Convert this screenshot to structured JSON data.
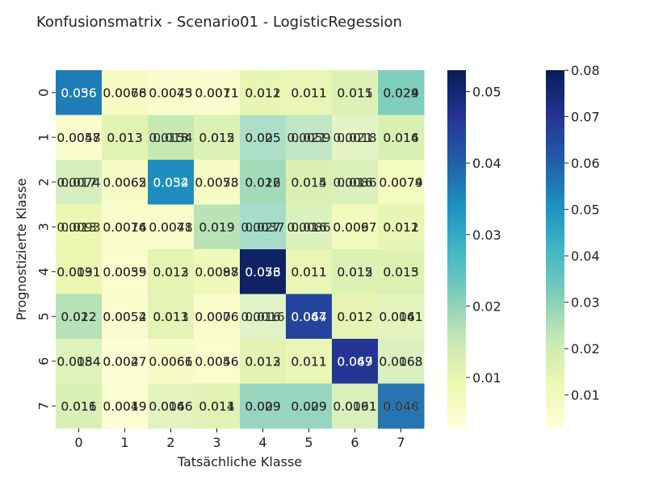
{
  "chart_data": {
    "type": "heatmap",
    "title": "Konfusionsmatrix - Scenario01 - LogisticRegession",
    "xlabel": "Tatsächliche Klasse",
    "ylabel": "Prognostizierte Klasse",
    "x_categories": [
      "0",
      "1",
      "2",
      "3",
      "4",
      "5",
      "6",
      "7"
    ],
    "y_categories": [
      "0",
      "1",
      "2",
      "3",
      "4",
      "5",
      "6",
      "7"
    ],
    "layers": [
      {
        "values": [
          [
            0.036,
            0.0066,
            0.0045,
            0.0071,
            0.011,
            0.011,
            0.015,
            0.024
          ],
          [
            0.0057,
            0.013,
            0.018,
            0.015,
            0.025,
            0.021,
            0.0018,
            0.014
          ],
          [
            0.017,
            0.0062,
            0.034,
            0.0058,
            0.026,
            0.014,
            0.016,
            0.0079
          ],
          [
            0.0093,
            0.0074,
            0.0041,
            0.019,
            0.027,
            0.016,
            0.0067,
            0.011
          ],
          [
            0.0091,
            0.0059,
            0.012,
            0.0087,
            0.053,
            0.011,
            0.015,
            0.013
          ],
          [
            0.022,
            0.0054,
            0.013,
            0.0076,
            0.016,
            0.044,
            0.012,
            0.0141
          ],
          [
            0.0154,
            0.0027,
            0.0061,
            0.0056,
            0.013,
            0.011,
            0.047,
            0.0163
          ],
          [
            0.016,
            0.0049,
            0.0146,
            0.014,
            0.029,
            0.029,
            0.0161,
            0.043
          ]
        ],
        "labels": [
          [
            "0.036",
            "0.0066",
            "0.0045",
            "0.0071",
            "0.011",
            "0.011",
            "0.015",
            "0.024"
          ],
          [
            "0.0057",
            "0.013",
            "0.018",
            "0.015",
            "0.025",
            "0.021",
            "0.0018",
            "0.014"
          ],
          [
            "0.017",
            "0.0062",
            "0.034",
            "0.0058",
            "0.026",
            "0.014",
            "0.016",
            "0.0079"
          ],
          [
            "0.0093",
            "0.0074",
            "0.0041",
            "0.019",
            "0.027",
            "0.016",
            "0.0067",
            "0.011"
          ],
          [
            "0.0091",
            "0.0059",
            "0.012",
            "0.0087",
            "0.053",
            "0.011",
            "0.015",
            "0.013"
          ],
          [
            "0.022",
            "0.0054",
            "0.013",
            "0.0076",
            "0.016",
            "0.044",
            "0.012",
            "0.0141"
          ],
          [
            "0.0154",
            "0.0027",
            "0.0061",
            "0.0056",
            "0.013",
            "0.011",
            "0.047",
            "0.0163"
          ],
          [
            "0.016",
            "0.0049",
            "0.0146",
            "0.014",
            "0.029",
            "0.029",
            "0.0161",
            "0.043"
          ]
        ],
        "vmin": 0.003,
        "vmax": 0.053,
        "colorbar_ticks": [
          0.01,
          0.02,
          0.03,
          0.04,
          0.05
        ],
        "colorbar_tick_labels": [
          "0.01",
          "0.02",
          "0.03",
          "0.04",
          "0.05"
        ]
      },
      {
        "values": [
          [
            0.056,
            0.0078,
            0.0073,
            0.0011,
            0.012,
            0.011,
            0.011,
            0.029
          ],
          [
            0.0048,
            0.013,
            0.0154,
            0.012,
            0.005,
            0.0059,
            0.021,
            0.016
          ],
          [
            0.0074,
            0.0065,
            0.052,
            0.0073,
            0.012,
            0.015,
            0.0086,
            0.0074
          ],
          [
            0.013,
            0.0016,
            0.0078,
            0.019,
            0.0037,
            0.0086,
            0.0097,
            0.012
          ],
          [
            0.0131,
            0.0035,
            0.013,
            0.0098,
            0.076,
            0.011,
            0.012,
            0.015
          ],
          [
            0.012,
            0.0052,
            0.011,
            0.0006,
            0.0016,
            0.067,
            0.012,
            0.0061
          ],
          [
            0.0084,
            0.0047,
            0.0066,
            0.0046,
            0.012,
            0.011,
            0.069,
            0.0068
          ],
          [
            0.011,
            0.0019,
            0.0066,
            0.011,
            0.009,
            0.009,
            0.0091,
            0.048
          ]
        ],
        "labels": [
          [
            "0.056",
            "0.0078",
            "0.0073",
            "0.0011",
            "0.012",
            "0.011",
            "0.011",
            "0.029"
          ],
          [
            "0.0048",
            "0.013",
            "0.0154",
            "0.012",
            "0.005",
            "0.0059",
            "0.021",
            "0.016"
          ],
          [
            "0.0074",
            "0.0065",
            "0.052",
            "0.0073",
            "0.012",
            "0.015",
            "0.0086",
            "0.0074"
          ],
          [
            "0.013",
            "0.0016",
            "0.0078",
            "0.019",
            "0.0037",
            "0.0086",
            "0.0097",
            "0.012"
          ],
          [
            "0.0131",
            "0.0035",
            "0.013",
            "0.0098",
            "0.076",
            "0.011",
            "0.012",
            "0.015"
          ],
          [
            "0.012",
            "0.0052",
            "0.011",
            "0.0006",
            "0.0016",
            "0.067",
            "0.012",
            "0.0061"
          ],
          [
            "0.0084",
            "0.0047",
            "0.0066",
            "0.0046",
            "0.012",
            "0.011",
            "0.069",
            "0.0068"
          ],
          [
            "0.011",
            "0.0019",
            "0.0066",
            "0.011",
            "0.009",
            "0.009",
            "0.0091",
            "0.048"
          ]
        ],
        "vmin": 0.003,
        "vmax": 0.08,
        "colorbar_ticks": [
          0.01,
          0.02,
          0.03,
          0.04,
          0.05,
          0.06,
          0.07,
          0.08
        ],
        "colorbar_tick_labels": [
          "0.01",
          "0.02",
          "0.03",
          "0.04",
          "0.05",
          "0.06",
          "0.07",
          "0.08"
        ]
      }
    ],
    "colormap": "YlGnBu",
    "colormap_stops": [
      "#ffffd9",
      "#edf8b1",
      "#c7e9b4",
      "#7fcdbb",
      "#41b6c4",
      "#1d91c0",
      "#225ea8",
      "#253494",
      "#081d58"
    ],
    "colorbars": 2,
    "grid": false
  }
}
